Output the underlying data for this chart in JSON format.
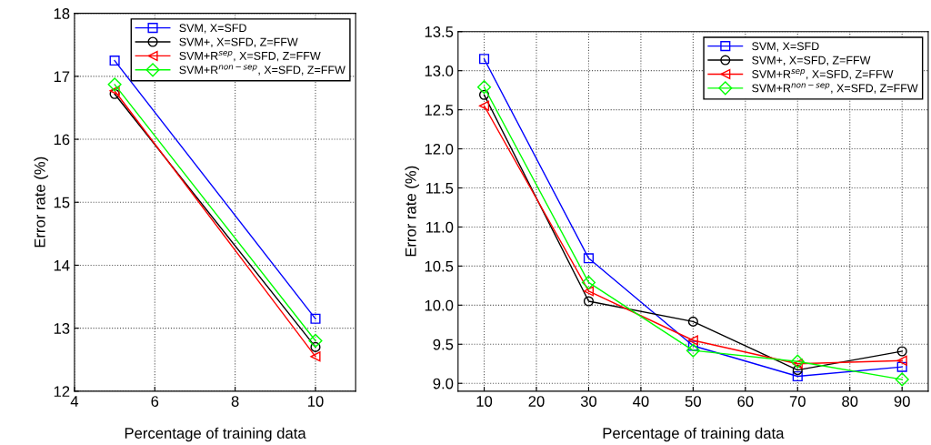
{
  "chart_data": [
    {
      "type": "line",
      "xlabel": "Percentage of training data",
      "ylabel": "Error rate (%)",
      "x": [
        5,
        10
      ],
      "series": [
        {
          "name": "SVM, X=SFD",
          "color": "#0000ff",
          "marker": "square",
          "values": [
            17.25,
            13.15
          ]
        },
        {
          "name": "SVM+, X=SFD, Z=FFW",
          "color": "#000000",
          "marker": "circle",
          "values": [
            16.72,
            12.7
          ]
        },
        {
          "name": "SVM+R$^{sep}$, X=SFD, Z=FFW",
          "color": "#ff0000",
          "marker": "triangle",
          "values": [
            16.77,
            12.55
          ]
        },
        {
          "name": "SVM+R$^{non−sep}$, X=SFD, Z=FFW",
          "color": "#00ff00",
          "marker": "diamond",
          "values": [
            16.87,
            12.8
          ]
        }
      ],
      "xlim": [
        4,
        11
      ],
      "ylim": [
        12,
        18
      ],
      "xticks": [
        4,
        6,
        8,
        10
      ],
      "yticks": [
        12,
        13,
        14,
        15,
        16,
        17,
        18
      ],
      "grid": true,
      "legend": "top right",
      "line_style": "solid"
    },
    {
      "type": "line",
      "xlabel": "Percentage of training data",
      "ylabel": "Error rate (%)",
      "x": [
        10,
        30,
        50,
        70,
        90
      ],
      "series": [
        {
          "name": "SVM, X=SFD",
          "color": "#0000ff",
          "marker": "square",
          "values": [
            13.15,
            10.6,
            9.48,
            9.09,
            9.21
          ]
        },
        {
          "name": "SVM+, X=SFD, Z=FFW",
          "color": "#000000",
          "marker": "circle",
          "values": [
            12.69,
            10.05,
            9.79,
            9.17,
            9.41
          ]
        },
        {
          "name": "SVM+R$^{sep}$, X=SFD, Z=FFW",
          "color": "#ff0000",
          "marker": "triangle",
          "values": [
            12.55,
            10.18,
            9.55,
            9.25,
            9.29
          ]
        },
        {
          "name": "SVM+R$^{non−sep}$, X=SFD, Z=FFW",
          "color": "#00ff00",
          "marker": "diamond",
          "values": [
            12.79,
            10.29,
            9.42,
            9.28,
            9.05
          ]
        }
      ],
      "xlim": [
        5,
        95
      ],
      "ylim": [
        8.9,
        13.5
      ],
      "xticks": [
        10,
        20,
        30,
        40,
        50,
        60,
        70,
        80,
        90
      ],
      "yticks": [
        {
          "value": 9,
          "label": "9.0"
        },
        9.5,
        {
          "value": 10,
          "label": "10.0"
        },
        10.5,
        {
          "value": 11,
          "label": "11.0"
        },
        11.5,
        {
          "value": 12,
          "label": "12.0"
        },
        12.5,
        {
          "value": 13,
          "label": "13.0"
        },
        13.5
      ],
      "grid": true,
      "legend": "top right",
      "line_style": "solid"
    }
  ]
}
